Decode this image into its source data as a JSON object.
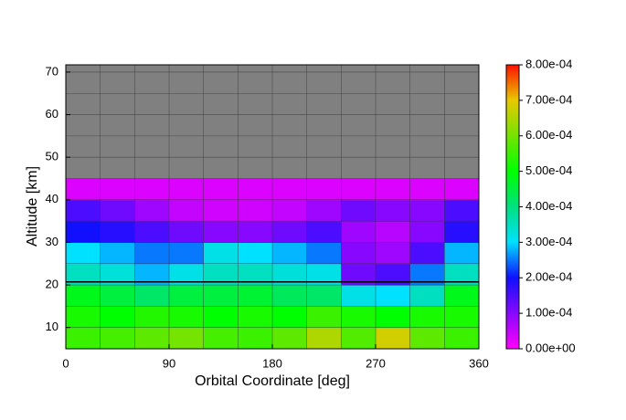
{
  "chart_data": {
    "type": "heatmap",
    "xlabel": "Orbital Coordinate [deg]",
    "ylabel": "Altitude [km]",
    "xlim": [
      0,
      360
    ],
    "xticks": [
      0,
      90,
      180,
      270,
      360
    ],
    "x_grid_step": 30,
    "ylim": [
      5,
      71.7
    ],
    "yticks": [
      10,
      20,
      30,
      40,
      50,
      60,
      70
    ],
    "y_grid_step": 5,
    "background": "#808080",
    "reference_line": 20.7,
    "x": [
      15,
      45,
      75,
      105,
      135,
      165,
      195,
      225,
      255,
      285,
      315,
      345
    ],
    "y": [
      7.5,
      12.5,
      17.5,
      22.5,
      27.5,
      32.5,
      37.5,
      42.5
    ],
    "values": [
      [
        0.00055,
        0.00056,
        0.00058,
        0.0006,
        0.00056,
        0.00055,
        0.00058,
        0.00065,
        0.00057,
        0.00068,
        0.00058,
        0.00055
      ],
      [
        0.00052,
        0.0005,
        0.00053,
        0.00052,
        0.0005,
        0.00052,
        0.0005,
        0.00055,
        0.00052,
        0.0005,
        0.00052,
        0.00052
      ],
      [
        0.00048,
        0.00045,
        0.00042,
        0.00045,
        0.00045,
        0.00046,
        0.00043,
        0.00042,
        0.00032,
        0.0003,
        0.00035,
        0.00048
      ],
      [
        0.00035,
        0.00033,
        0.00028,
        0.00032,
        0.00035,
        0.00035,
        0.00033,
        0.00032,
        0.00012,
        0.00015,
        0.00025,
        0.00035
      ],
      [
        0.0003,
        0.00028,
        0.00025,
        0.00025,
        0.00032,
        0.0003,
        0.00028,
        0.00025,
        0.0001,
        8e-05,
        0.00015,
        0.00028
      ],
      [
        0.0002,
        0.00018,
        0.00015,
        0.00012,
        0.0001,
        0.0001,
        0.00012,
        0.00015,
        8e-05,
        6e-05,
        0.0001,
        0.00018
      ],
      [
        0.00015,
        0.00012,
        8e-05,
        5e-05,
        4e-05,
        4e-05,
        5e-05,
        8e-05,
        0.00012,
        0.0001,
        0.0001,
        0.00015
      ],
      [
        3e-05,
        3e-05,
        3e-05,
        3e-05,
        3e-05,
        3e-05,
        3e-05,
        3e-05,
        3e-05,
        3e-05,
        3e-05,
        3e-05
      ]
    ],
    "colorbar": {
      "lim": [
        0,
        0.0008
      ],
      "ticks": [
        {
          "value": 0,
          "label": "0.00e+00"
        },
        {
          "value": 0.0001,
          "label": "1.00e-04"
        },
        {
          "value": 0.0002,
          "label": "2.00e-04"
        },
        {
          "value": 0.0003,
          "label": "3.00e-04"
        },
        {
          "value": 0.0004,
          "label": "4.00e-04"
        },
        {
          "value": 0.0005,
          "label": "5.00e-04"
        },
        {
          "value": 0.0006,
          "label": "6.00e-04"
        },
        {
          "value": 0.0007,
          "label": "7.00e-04"
        },
        {
          "value": 0.0008,
          "label": "8.00e-04"
        }
      ],
      "stops": [
        {
          "value": 0,
          "color": "#ff00ff"
        },
        {
          "value": 0.0002,
          "color": "#1010ff"
        },
        {
          "value": 0.0003,
          "color": "#00e0ff"
        },
        {
          "value": 0.0004,
          "color": "#00e080"
        },
        {
          "value": 0.0005,
          "color": "#00ff00"
        },
        {
          "value": 0.0007,
          "color": "#e8c800"
        },
        {
          "value": 0.0008,
          "color": "#ff1000"
        }
      ]
    }
  }
}
